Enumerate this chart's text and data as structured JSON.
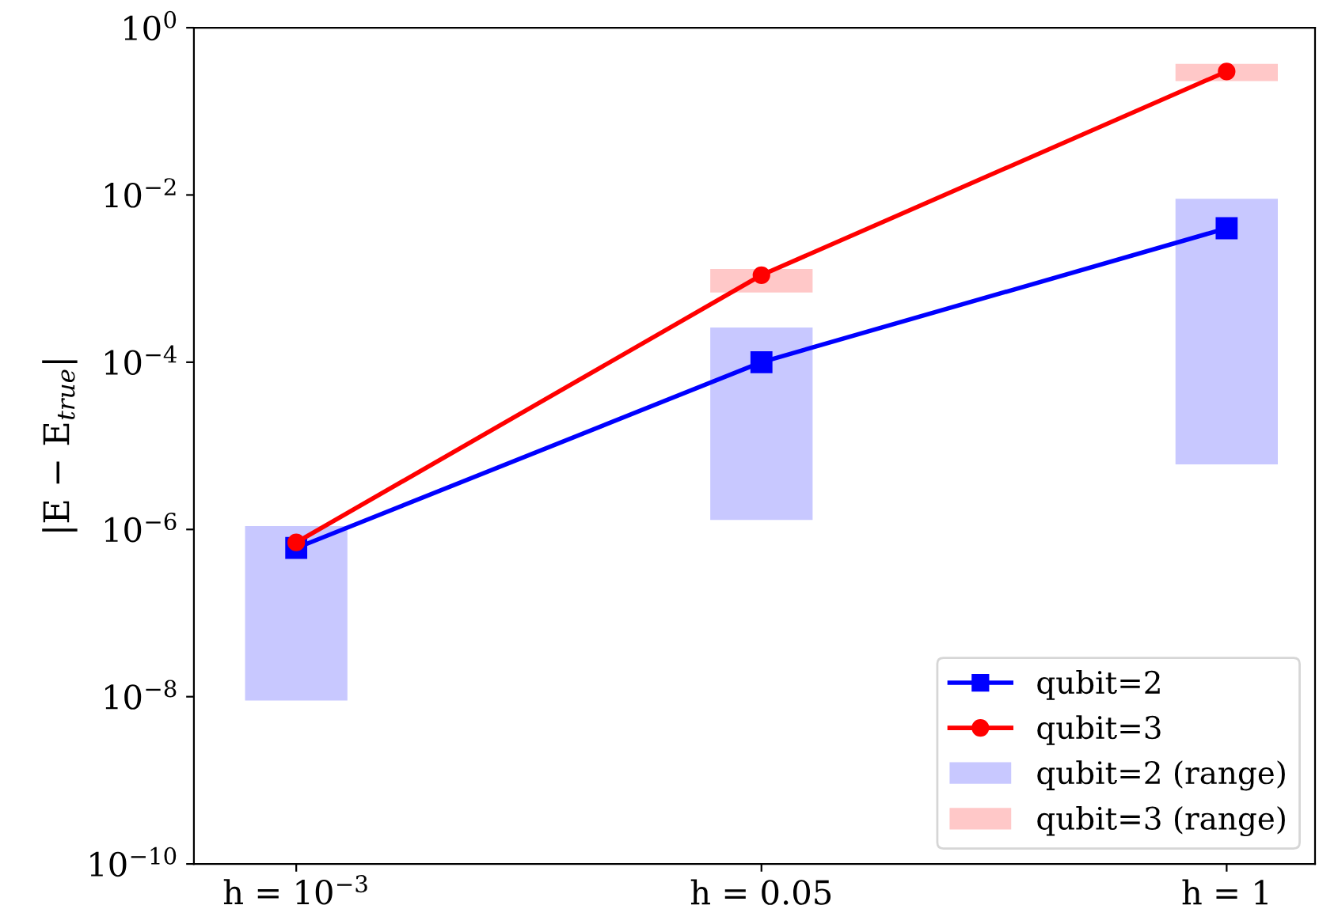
{
  "chart_data": {
    "type": "line",
    "ylabel": "|E − E$_{true}$|",
    "categories": [
      "h = 10$^{−3}$",
      "h = 0.05",
      "h = 1"
    ],
    "log": "y",
    "ylim": [
      1e-10,
      1
    ],
    "yticks": [
      {
        "value": 1e-10,
        "label": "10$^{−10}$"
      },
      {
        "value": 1e-08,
        "label": "10$^{−8}$"
      },
      {
        "value": 1e-06,
        "label": "10$^{−6}$"
      },
      {
        "value": 0.0001,
        "label": "10$^{−4}$"
      },
      {
        "value": 0.01,
        "label": "10$^{−2}$"
      },
      {
        "value": 1,
        "label": "10$^{0}$"
      }
    ],
    "legend": "bottom right",
    "series": [
      {
        "name": "qubit=2",
        "color": "#0000ff",
        "marker": "square",
        "values": [
          6e-07,
          0.0001,
          0.004
        ]
      },
      {
        "name": "qubit=3",
        "color": "#ff0000",
        "marker": "circle",
        "values": [
          7e-07,
          0.0011,
          0.3
        ]
      },
      {
        "name": "qubit=2 (range)",
        "type": "bar",
        "color": "#c8c8ff",
        "base": [
          9e-09,
          1.3e-06,
          6e-06
        ],
        "values": [
          1.09e-06,
          0.000259,
          0.009
        ]
      },
      {
        "name": "qubit=3 (range)",
        "type": "bar",
        "color": "#ffc8c8",
        "base": [
          null,
          0.00068,
          0.23
        ],
        "values": [
          null,
          0.00062,
          0.14
        ]
      }
    ]
  }
}
